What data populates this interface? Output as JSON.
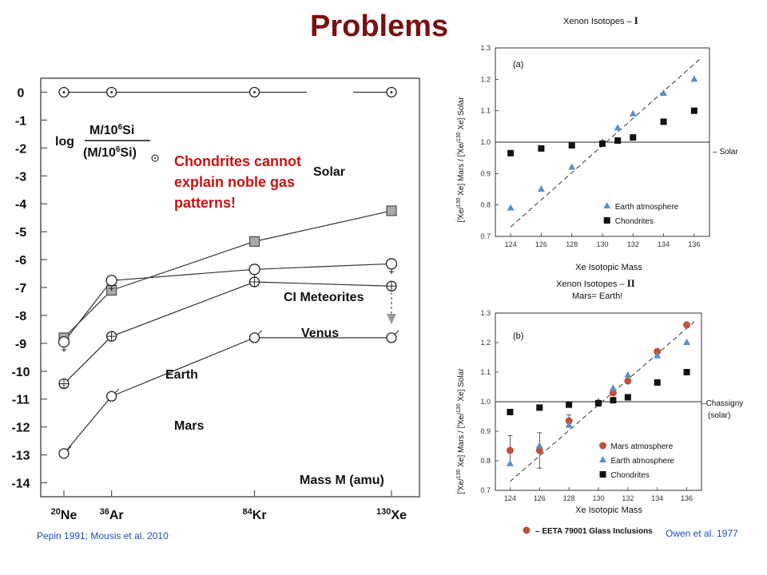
{
  "slide": {
    "title": "Problems",
    "note_lines": [
      "Chondrites cannot",
      "explain noble gas",
      "patterns!"
    ],
    "citation_left": "Pepin 1991; Mousis et al. 2010",
    "citation_right": "Owen et al. 1977"
  },
  "chart_data": [
    {
      "type": "line",
      "ylabel_parts": {
        "log": "log",
        "num": "M/10",
        "num_sup": "6",
        "num_tail": "Si",
        "den": "(M/10",
        "den_sup": "6",
        "den_tail": "Si)"
      },
      "xlabel": "Mass M (amu)",
      "x_categories": [
        {
          "sup": "20",
          "el": "Ne",
          "mass": 20
        },
        {
          "sup": "36",
          "el": "Ar",
          "mass": 36
        },
        {
          "sup": "84",
          "el": "Kr",
          "mass": 84
        },
        {
          "sup": "130",
          "el": "Xe",
          "mass": 130
        }
      ],
      "yticks": [
        "0",
        "-1",
        "-2",
        "-3",
        "-4",
        "-5",
        "-6",
        "-7",
        "-8",
        "-9",
        "-10",
        "-11",
        "-12",
        "-13",
        "-14"
      ],
      "ylim": [
        -14.5,
        0.5
      ],
      "series": [
        {
          "name": "Solar",
          "x": [
            20,
            36,
            84,
            130
          ],
          "y": [
            0,
            0,
            0,
            0
          ]
        },
        {
          "name": "CI Meteorites",
          "x": [
            20,
            36,
            84,
            130
          ],
          "y": [
            -8.8,
            -7.1,
            -5.35,
            -4.25
          ]
        },
        {
          "name": "Venus",
          "x": [
            20,
            36,
            84,
            130
          ],
          "y": [
            -8.95,
            -6.75,
            -6.35,
            -6.15
          ]
        },
        {
          "name": "Earth",
          "x": [
            20,
            36,
            84,
            130
          ],
          "y": [
            -10.45,
            -8.75,
            -6.8,
            -6.95
          ]
        },
        {
          "name": "Mars",
          "x": [
            20,
            36,
            84,
            130
          ],
          "y": [
            -12.95,
            -10.9,
            -8.8,
            -8.8
          ]
        }
      ]
    },
    {
      "type": "scatter",
      "title": "Xenon Isotopes",
      "title_numeral": "I",
      "panel_label": "(a)",
      "xlabel": "Xe Isotopic Mass",
      "ylabel": "[iXe/130Xe] Mars / [iXe/130Xe] Solar",
      "ylabel_sup_marks": [
        "i",
        "130",
        "i",
        "130"
      ],
      "xticks": [
        "124",
        "126",
        "128",
        "130",
        "132",
        "134",
        "136"
      ],
      "yticks": [
        "0.7",
        "0.8",
        "0.9",
        "1.0",
        "1.1",
        "1.2",
        "1.3"
      ],
      "xlim": [
        123,
        137
      ],
      "ylim": [
        0.7,
        1.3
      ],
      "reference_label": "Solar",
      "legend": [
        "Earth atmosphere",
        "Chondrites"
      ],
      "series": [
        {
          "name": "Earth atmosphere",
          "x": [
            124,
            126,
            128,
            130,
            131,
            132,
            134,
            136
          ],
          "y": [
            0.79,
            0.85,
            0.92,
            1.0,
            1.045,
            1.09,
            1.155,
            1.2
          ]
        },
        {
          "name": "Chondrites",
          "x": [
            124,
            126,
            128,
            130,
            131,
            132,
            134,
            136
          ],
          "y": [
            0.965,
            0.98,
            0.99,
            0.995,
            1.005,
            1.015,
            1.065,
            1.1
          ]
        }
      ]
    },
    {
      "type": "scatter",
      "title": "Xenon Isotopes",
      "title_numeral": "II",
      "subtitle": "Mars= Earth!",
      "panel_label": "(b)",
      "xlabel": "Xe Isotopic Mass",
      "ylabel": "[iXe/130Xe] Mars / [iXe/130Xe] Solar",
      "xticks": [
        "124",
        "126",
        "128",
        "130",
        "132",
        "134",
        "136"
      ],
      "yticks": [
        "0.7",
        "0.8",
        "0.9",
        "1.0",
        "1.1",
        "1.2",
        "1.3"
      ],
      "xlim": [
        123,
        137
      ],
      "ylim": [
        0.7,
        1.3
      ],
      "reference_label": [
        "Chassigny",
        "(solar)"
      ],
      "legend": [
        "Mars atmosphere",
        "Earth atmosphere",
        "Chondrites"
      ],
      "footer_legend": "EETA 79001 Glass Inclusions",
      "series": [
        {
          "name": "Mars atmosphere",
          "x": [
            124,
            126,
            128,
            130,
            131,
            132,
            134,
            136
          ],
          "y": [
            0.835,
            0.835,
            0.935,
            0.995,
            1.03,
            1.07,
            1.17,
            1.26
          ],
          "err": [
            0.05,
            0.06,
            0.02,
            0,
            0,
            0,
            0,
            0
          ]
        },
        {
          "name": "Earth atmosphere",
          "x": [
            124,
            126,
            128,
            130,
            131,
            132,
            134,
            136
          ],
          "y": [
            0.79,
            0.85,
            0.92,
            1.0,
            1.045,
            1.09,
            1.155,
            1.2
          ]
        },
        {
          "name": "Chondrites",
          "x": [
            124,
            126,
            128,
            130,
            131,
            132,
            134,
            136
          ],
          "y": [
            0.965,
            0.98,
            0.99,
            0.995,
            1.005,
            1.015,
            1.065,
            1.1
          ]
        }
      ]
    }
  ],
  "colors": {
    "title": "#7b0f0f",
    "note": "#cc1111",
    "citation": "#1f4fb4",
    "earth_marker": "#5b8fc8",
    "mars_marker": "#c0503c",
    "square_fill": "#a9a9a9"
  }
}
